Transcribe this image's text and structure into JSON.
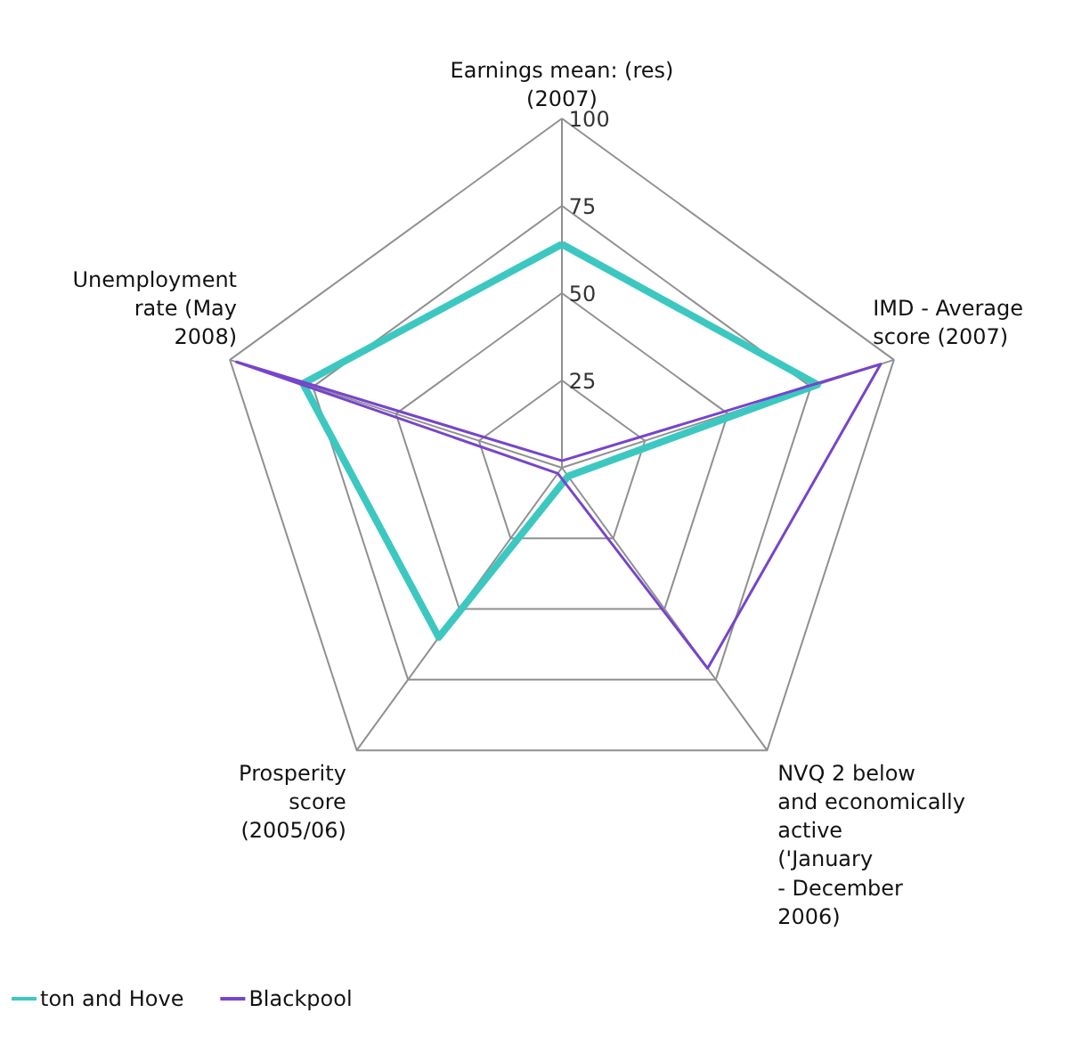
{
  "chart_data": {
    "type": "radar",
    "categories": [
      "Earnings mean: (res)\n(2007)",
      "IMD - Average\nscore (2007)",
      "NVQ 2 below\nand economically\nactive\n('January\n- December\n2006)",
      "Prosperity\nscore\n(2005/06)",
      "Unemployment\nrate (May\n2008)"
    ],
    "series": [
      {
        "name": "ton and Hove",
        "color": "#3cc8c0",
        "values": [
          64,
          77,
          3,
          60,
          78
        ]
      },
      {
        "name": "Blackpool",
        "color": "#7744cc",
        "values": [
          2,
          96,
          71,
          2,
          98
        ]
      }
    ],
    "ylim": [
      0,
      100
    ],
    "yticks": [
      25,
      50,
      75,
      100
    ],
    "legend": "bottom left"
  }
}
